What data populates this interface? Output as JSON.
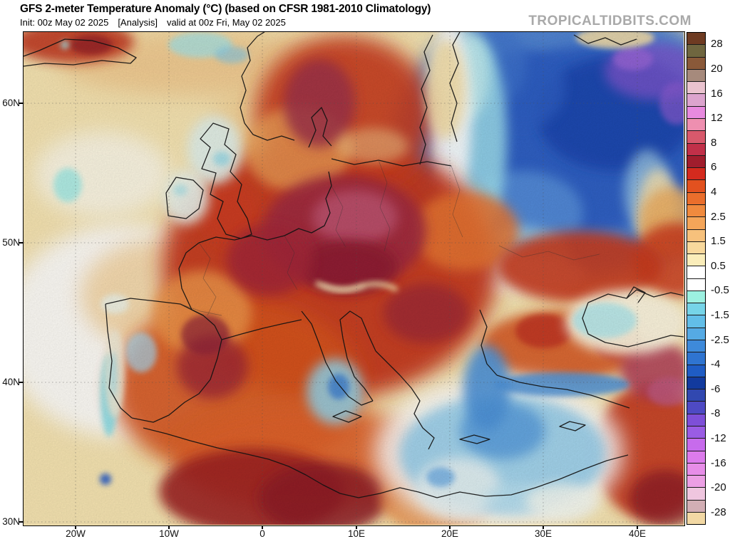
{
  "header": {
    "title": "GFS 2-meter Temperature Anomaly (°C) (based on CFSR 1981-2010 Climatology)",
    "init": "Init: 00z May 02 2025",
    "mode": "[Analysis]",
    "valid": "valid at 00z Fri, May 02 2025",
    "watermark": "TROPICALTIDBITS.COM"
  },
  "axes": {
    "lat_labels": [
      "60N",
      "50N",
      "40N",
      "30N"
    ],
    "lon_labels": [
      "20W",
      "10W",
      "0",
      "10E",
      "20E",
      "30E",
      "40E"
    ]
  },
  "colorbar": {
    "labels": [
      "28",
      "20",
      "16",
      "12",
      "8",
      "6",
      "4",
      "2.5",
      "1.5",
      "0.5",
      "-0.5",
      "-1.5",
      "-2.5",
      "-4",
      "-6",
      "-8",
      "-12",
      "-16",
      "-20",
      "-28"
    ],
    "colors": [
      "#6E3B22",
      "#6F663F",
      "#8A5939",
      "#A68A7C",
      "#EAC3CF",
      "#DCA4CE",
      "#E88ADF",
      "#EE8FB0",
      "#D8596C",
      "#C13049",
      "#A01D2D",
      "#D42A1E",
      "#E2511F",
      "#EA6E2C",
      "#F08A3E",
      "#F4A559",
      "#F7C17C",
      "#F8D89C",
      "#FAEDBA",
      "#FFFFFF",
      "#FFFFFF",
      "#9CF0E0",
      "#76D4E8",
      "#62BEE8",
      "#55AAE4",
      "#3E8ADA",
      "#2F74D0",
      "#1F5CC4",
      "#123A9E",
      "#3148B0",
      "#4E4AC4",
      "#7E4FD8",
      "#9A5CE4",
      "#C76BEC",
      "#DC7BEC",
      "#E78DE8",
      "#EC9FE4",
      "#EFC6DF",
      "#D2AEB4",
      "#F2D8A4"
    ]
  }
}
